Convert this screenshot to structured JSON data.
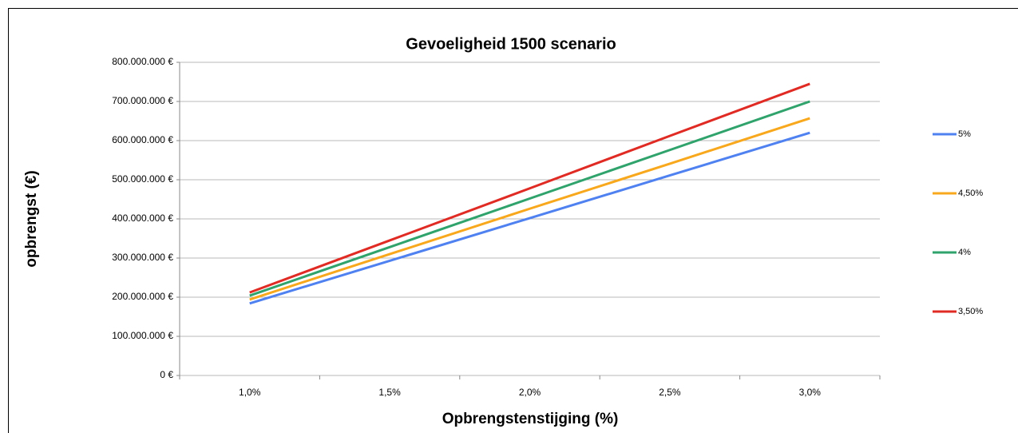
{
  "chart_data": {
    "type": "line",
    "title": "Gevoeligheid 1500 scenario",
    "x_label": "Opbrengstenstijging (%)",
    "y_label": "opbrengst (€)",
    "categories": [
      "1,0%",
      "1,5%",
      "2,0%",
      "2,5%",
      "3,0%"
    ],
    "series": [
      {
        "name": "5%",
        "color": "#4f81f0",
        "values": [
          184000000,
          293000000,
          402000000,
          511000000,
          620000000
        ]
      },
      {
        "name": "4,50%",
        "color": "#f8a81c",
        "values": [
          194000000,
          310000000,
          426000000,
          541000000,
          657000000
        ]
      },
      {
        "name": "4%",
        "color": "#2fa36b",
        "values": [
          204000000,
          328000000,
          452000000,
          576000000,
          700000000
        ]
      },
      {
        "name": "3,50%",
        "color": "#e02b24",
        "values": [
          212000000,
          345000000,
          478000000,
          612000000,
          745000000
        ]
      }
    ],
    "ylim": [
      0,
      800000000
    ],
    "yticks": [
      {
        "value": 0,
        "label": "0 €"
      },
      {
        "value": 100000000,
        "label": "100.000.000 €"
      },
      {
        "value": 200000000,
        "label": "200.000.000 €"
      },
      {
        "value": 300000000,
        "label": "300.000.000 €"
      },
      {
        "value": 400000000,
        "label": "400.000.000 €"
      },
      {
        "value": 500000000,
        "label": "500.000.000 €"
      },
      {
        "value": 600000000,
        "label": "600.000.000 €"
      },
      {
        "value": 700000000,
        "label": "700.000.000 €"
      },
      {
        "value": 800000000,
        "label": "800.000.000 €"
      }
    ],
    "grid": true,
    "legend": "right"
  }
}
